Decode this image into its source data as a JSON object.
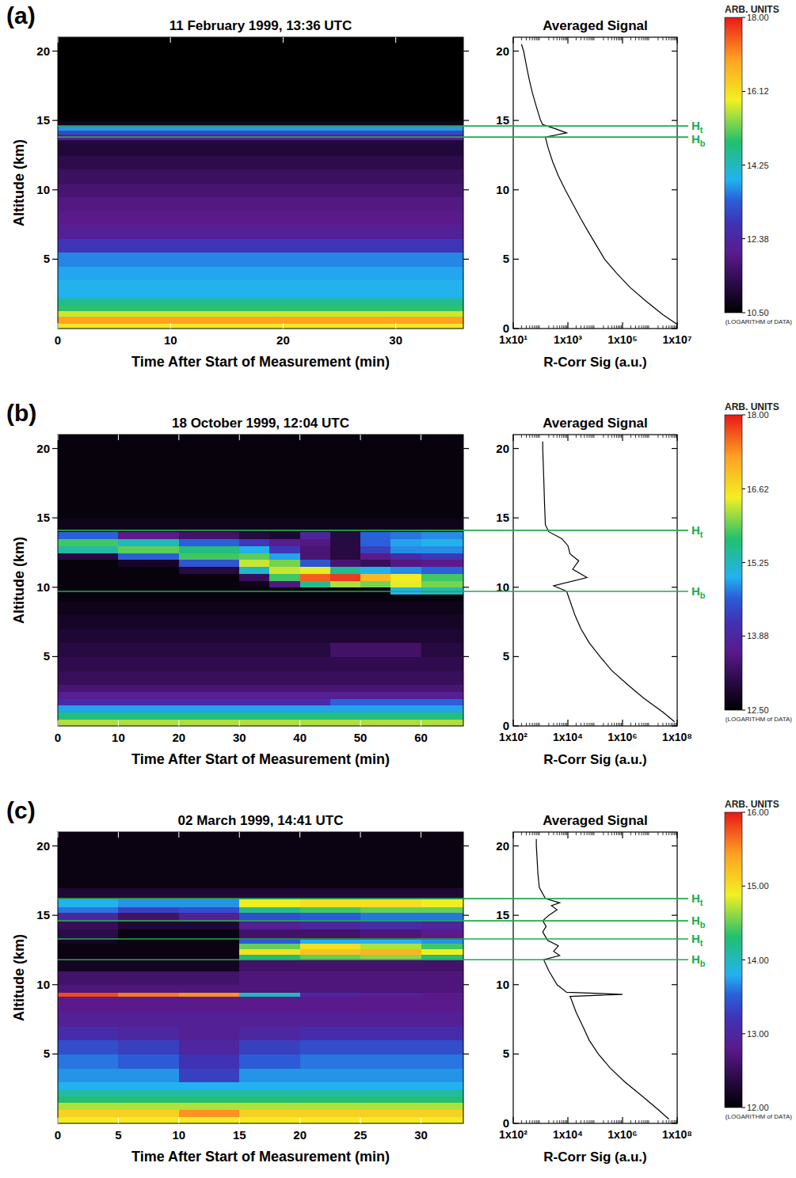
{
  "chart_data": [
    {
      "type": "heatmap",
      "panel": "(a)",
      "title": "11 February 1999, 13:36 UTC",
      "x_label": "Time After Start of Measurement (min)",
      "y_label": "Altitude (km)",
      "xlim": [
        0,
        36
      ],
      "xticks": [
        0,
        10,
        20,
        30
      ],
      "ylim": [
        0,
        21
      ],
      "yticks": [
        5,
        10,
        15,
        20
      ],
      "time_edges": [
        0,
        36
      ],
      "altitude_edges": [
        0,
        0.4,
        0.9,
        1.3,
        1.7,
        2.2,
        2.7,
        3.5,
        4.5,
        5.5,
        6.5,
        7.5,
        8.5,
        9.5,
        10.5,
        11.5,
        12.5,
        13.6,
        14.0,
        14.3,
        14.6,
        15,
        21
      ],
      "cells": [
        [
          16.0
        ],
        [
          16.9
        ],
        [
          15.7
        ],
        [
          14.9
        ],
        [
          14.6
        ],
        [
          13.9
        ],
        [
          13.9
        ],
        [
          13.8
        ],
        [
          13.6
        ],
        [
          12.8
        ],
        [
          12.2
        ],
        [
          12.0
        ],
        [
          11.9
        ],
        [
          11.7
        ],
        [
          11.5
        ],
        [
          11.3
        ],
        [
          11.1
        ],
        [
          12.2
        ],
        [
          13.1
        ],
        [
          13.7
        ],
        [
          10.8
        ],
        [
          10.5
        ]
      ],
      "colorbar": {
        "title": "ARB. UNITS",
        "note": "(LOGARITHM of DATA)",
        "range": [
          10.5,
          18
        ],
        "ticks": [
          {
            "value": 10.5,
            "label": "10.50"
          },
          12.38,
          14.25,
          16.12,
          {
            "value": 18,
            "label": "18.00"
          }
        ]
      },
      "profile": {
        "type": "line",
        "log": "x",
        "title": "Averaged Signal",
        "x_label": "R-Corr Sig (a.u.)",
        "color": "#000000",
        "xlim": [
          10,
          10000000
        ],
        "xticks": [
          {
            "value": 10,
            "label": "1x10¹"
          },
          {
            "value": 1000,
            "label": "1x10³"
          },
          {
            "value": 100000,
            "label": "1x10⁵"
          },
          {
            "value": 10000000,
            "label": "1x10⁷"
          }
        ],
        "ylim": [
          0,
          21
        ],
        "yticks": [
          0,
          5,
          10,
          15,
          20
        ],
        "altitude": [
          0.3,
          1,
          2,
          3,
          4,
          5,
          6,
          7,
          8,
          9,
          10,
          11,
          12,
          13,
          13.8,
          14.1,
          14.4,
          14.7,
          15,
          16,
          17,
          18,
          19,
          20,
          20.5
        ],
        "signal": [
          10000000,
          3000000,
          700000,
          180000,
          60000,
          22000,
          11000,
          5500,
          2800,
          1500,
          800,
          450,
          280,
          190,
          150,
          900,
          350,
          120,
          100,
          70,
          50,
          38,
          30,
          24,
          20
        ]
      },
      "levels": {
        "color": "#22aa4a",
        "lines": [
          {
            "value": 14.6,
            "label": "H",
            "sub": "t"
          },
          {
            "value": 13.8,
            "label": "H",
            "sub": "b"
          }
        ]
      }
    },
    {
      "type": "heatmap",
      "panel": "(b)",
      "title": "18 October 1999, 12:04 UTC",
      "x_label": "Time After Start of Measurement (min)",
      "y_label": "Altitude (km)",
      "xlim": [
        0,
        67
      ],
      "xticks": [
        0,
        10,
        20,
        30,
        40,
        50,
        60
      ],
      "ylim": [
        0,
        21
      ],
      "yticks": [
        5,
        10,
        15,
        20
      ],
      "time_edges": [
        0,
        10,
        20,
        30,
        35,
        40,
        45,
        50,
        55,
        60,
        67
      ],
      "altitude_edges": [
        0,
        0.5,
        1,
        1.5,
        2,
        2.5,
        3,
        4,
        5,
        6,
        7,
        8,
        9,
        9.5,
        10,
        10.5,
        11,
        11.5,
        12,
        12.5,
        13,
        13.5,
        14,
        15,
        21
      ],
      "cells": [
        [
          16.2,
          16.2,
          16.2,
          16.2,
          16.2,
          16.2,
          16.2,
          16.2,
          16.2,
          16.2
        ],
        [
          15.6,
          15.6,
          15.6,
          15.6,
          15.6,
          15.6,
          15.6,
          15.6,
          15.6,
          15.6
        ],
        [
          14.9,
          14.9,
          14.9,
          14.9,
          14.9,
          14.9,
          14.9,
          14.9,
          14.9,
          14.9
        ],
        [
          14.0,
          14.0,
          14.0,
          14.0,
          14.0,
          14.0,
          14.6,
          14.6,
          14.6,
          14.6
        ],
        [
          13.7,
          13.7,
          13.7,
          13.7,
          13.7,
          13.7,
          13.7,
          13.7,
          13.7,
          13.7
        ],
        [
          13.4,
          13.4,
          13.4,
          13.4,
          13.4,
          13.4,
          13.4,
          13.4,
          13.4,
          13.4
        ],
        [
          13.2,
          13.2,
          13.2,
          13.2,
          13.2,
          13.2,
          13.2,
          13.2,
          13.2,
          13.2
        ],
        [
          13.1,
          13.1,
          13.1,
          13.1,
          13.1,
          13.1,
          13.1,
          13.1,
          13.1,
          13.1
        ],
        [
          13.0,
          13.0,
          13.0,
          13.0,
          13.0,
          13.0,
          13.3,
          13.3,
          13.3,
          13.0
        ],
        [
          12.9,
          12.9,
          12.9,
          12.9,
          12.9,
          12.9,
          12.9,
          12.9,
          12.9,
          12.9
        ],
        [
          12.8,
          12.8,
          12.8,
          12.8,
          12.8,
          12.8,
          12.8,
          12.8,
          12.8,
          12.8
        ],
        [
          12.7,
          12.7,
          12.7,
          12.7,
          12.7,
          12.7,
          12.7,
          12.7,
          12.7,
          12.7
        ],
        [
          12.6,
          12.6,
          12.6,
          12.6,
          12.6,
          12.6,
          12.6,
          12.6,
          12.6,
          12.6
        ],
        [
          12.6,
          12.6,
          12.6,
          12.6,
          12.6,
          12.6,
          12.6,
          12.6,
          15.0,
          15.3
        ],
        [
          12.6,
          12.6,
          12.6,
          12.7,
          13.5,
          15.5,
          16.2,
          16.0,
          16.4,
          16.0
        ],
        [
          12.6,
          12.6,
          12.6,
          13.2,
          15.8,
          17.6,
          17.8,
          17.0,
          16.5,
          15.8
        ],
        [
          12.6,
          12.6,
          13.0,
          15.2,
          16.3,
          16.4,
          15.5,
          15.0,
          14.8,
          14.6
        ],
        [
          12.6,
          12.8,
          14.5,
          16.3,
          16.0,
          14.5,
          13.4,
          13.2,
          13.5,
          13.6
        ],
        [
          13.0,
          14.6,
          15.8,
          15.9,
          14.9,
          13.4,
          13.0,
          13.6,
          14.0,
          14.2
        ],
        [
          15.4,
          15.9,
          15.6,
          15.0,
          14.2,
          13.4,
          13.0,
          14.3,
          14.8,
          14.8
        ],
        [
          15.8,
          15.3,
          14.6,
          14.2,
          13.7,
          13.5,
          13.0,
          14.6,
          14.9,
          15.0
        ],
        [
          14.6,
          13.6,
          13.3,
          13.0,
          12.9,
          13.8,
          13.0,
          14.6,
          14.7,
          14.8
        ],
        [
          12.7,
          12.7,
          12.7,
          12.7,
          12.7,
          12.7,
          12.7,
          12.7,
          12.7,
          12.7
        ],
        [
          12.6,
          12.6,
          12.6,
          12.6,
          12.6,
          12.6,
          12.6,
          12.6,
          12.6,
          12.6
        ]
      ],
      "colorbar": {
        "title": "ARB. UNITS",
        "note": "(LOGARITHM of DATA)",
        "range": [
          12.5,
          18
        ],
        "ticks": [
          {
            "value": 12.5,
            "label": "12.50"
          },
          13.88,
          15.25,
          16.62,
          {
            "value": 18,
            "label": "18.00"
          }
        ]
      },
      "profile": {
        "type": "line",
        "log": "x",
        "title": "Averaged Signal",
        "x_label": "R-Corr Sig (a.u.)",
        "color": "#000000",
        "xlim": [
          100,
          100000000
        ],
        "xticks": [
          {
            "value": 100,
            "label": "1x10²"
          },
          {
            "value": 10000,
            "label": "1x10⁴"
          },
          {
            "value": 1000000,
            "label": "1x10⁶"
          },
          {
            "value": 100000000,
            "label": "1x10⁸"
          }
        ],
        "ylim": [
          0,
          21
        ],
        "yticks": [
          0,
          5,
          10,
          15,
          20
        ],
        "altitude": [
          0.3,
          1,
          2,
          3,
          4,
          5,
          6,
          7,
          8,
          9,
          9.7,
          10.1,
          10.7,
          11.3,
          11.9,
          12.4,
          13,
          13.5,
          14,
          14.5,
          16,
          18,
          20,
          20.5
        ],
        "signal": [
          80000000,
          30000000,
          6000000,
          1500000,
          400000,
          150000,
          60000,
          30000,
          18000,
          12000,
          9000,
          3000,
          50000,
          15000,
          25000,
          12000,
          10000,
          6000,
          2000,
          1500,
          1400,
          1300,
          1200,
          1200
        ]
      },
      "levels": {
        "color": "#22aa4a",
        "lines": [
          {
            "value": 14.1,
            "label": "H",
            "sub": "t"
          },
          {
            "value": 9.7,
            "label": "H",
            "sub": "b"
          }
        ]
      }
    },
    {
      "type": "heatmap",
      "panel": "(c)",
      "title": "02 March 1999, 14:41 UTC",
      "x_label": "Time After Start of Measurement (min)",
      "y_label": "Altitude (km)",
      "xlim": [
        0,
        33.5
      ],
      "xticks": [
        0,
        5,
        10,
        15,
        20,
        25,
        30
      ],
      "ylim": [
        0,
        21
      ],
      "yticks": [
        5,
        10,
        15,
        20
      ],
      "time_edges": [
        0,
        5,
        10,
        15,
        20,
        25,
        30,
        33.5
      ],
      "altitude_edges": [
        0,
        0.5,
        1,
        1.5,
        2,
        2.5,
        3,
        4,
        5,
        6,
        7,
        8,
        9,
        9.15,
        9.45,
        10,
        11,
        11.8,
        12.2,
        12.6,
        13,
        13.3,
        14,
        14.6,
        15.2,
        15.6,
        16.2,
        17,
        21
      ],
      "cells": [
        [
          14.9,
          14.9,
          14.9,
          14.9,
          14.9,
          14.9,
          14.9
        ],
        [
          15.1,
          15.1,
          15.5,
          15.1,
          15.1,
          15.1,
          15.1
        ],
        [
          14.7,
          14.7,
          14.7,
          14.7,
          14.7,
          14.7,
          14.7
        ],
        [
          14.3,
          14.3,
          14.3,
          14.3,
          14.3,
          14.3,
          14.3
        ],
        [
          14.1,
          14.1,
          14.1,
          14.1,
          14.1,
          14.1,
          14.1
        ],
        [
          13.8,
          13.8,
          13.8,
          13.8,
          13.8,
          13.8,
          13.8
        ],
        [
          13.7,
          13.7,
          13.3,
          13.7,
          13.7,
          13.7,
          13.7
        ],
        [
          13.6,
          13.5,
          13.2,
          13.5,
          13.6,
          13.6,
          13.6
        ],
        [
          13.4,
          13.3,
          13.0,
          13.3,
          13.4,
          13.4,
          13.4
        ],
        [
          13.1,
          13.0,
          12.9,
          13.0,
          13.1,
          13.1,
          13.1
        ],
        [
          12.9,
          12.9,
          12.9,
          12.9,
          12.9,
          12.9,
          12.9
        ],
        [
          12.8,
          12.8,
          12.8,
          12.8,
          12.8,
          12.8,
          12.8
        ],
        [
          12.8,
          12.8,
          12.8,
          12.8,
          12.8,
          12.8,
          12.8
        ],
        [
          15.8,
          15.6,
          15.5,
          14.0,
          13.0,
          12.9,
          12.8
        ],
        [
          12.7,
          12.7,
          12.7,
          12.7,
          12.7,
          12.7,
          12.7
        ],
        [
          12.6,
          12.6,
          12.6,
          12.7,
          12.7,
          12.7,
          12.7
        ],
        [
          12.2,
          12.2,
          12.2,
          12.6,
          12.6,
          12.6,
          12.6
        ],
        [
          12.1,
          12.1,
          12.1,
          14.3,
          14.5,
          14.6,
          14.3
        ],
        [
          12.1,
          12.1,
          12.1,
          15.0,
          15.2,
          15.3,
          14.9
        ],
        [
          12.1,
          12.1,
          12.1,
          14.5,
          15.0,
          14.7,
          14.4
        ],
        [
          12.2,
          12.1,
          12.1,
          13.5,
          13.8,
          13.8,
          13.7
        ],
        [
          12.4,
          12.1,
          12.1,
          12.6,
          12.6,
          12.7,
          12.8
        ],
        [
          12.5,
          12.3,
          12.3,
          12.9,
          13.0,
          13.1,
          13.0
        ],
        [
          13.0,
          12.6,
          12.9,
          13.4,
          13.5,
          13.6,
          13.6
        ],
        [
          13.6,
          13.3,
          13.4,
          14.2,
          14.4,
          14.5,
          14.5
        ],
        [
          13.8,
          13.7,
          13.7,
          14.9,
          15.0,
          15.0,
          14.9
        ],
        [
          12.3,
          12.3,
          12.3,
          12.3,
          12.3,
          12.3,
          12.3
        ],
        [
          12.1,
          12.1,
          12.1,
          12.1,
          12.1,
          12.1,
          12.1
        ]
      ],
      "colorbar": {
        "title": "ARB. UNITS",
        "note": "(LOGARITHM of DATA)",
        "range": [
          12,
          16
        ],
        "ticks": [
          {
            "value": 12,
            "label": "12.00"
          },
          {
            "value": 13,
            "label": "13.00"
          },
          {
            "value": 14,
            "label": "14.00"
          },
          {
            "value": 15,
            "label": "15.00"
          },
          {
            "value": 16,
            "label": "16.00"
          }
        ]
      },
      "profile": {
        "type": "line",
        "log": "x",
        "title": "Averaged Signal",
        "x_label": "R-Corr Sig (a.u.)",
        "color": "#000000",
        "xlim": [
          100,
          100000000
        ],
        "xticks": [
          {
            "value": 100,
            "label": "1x10²"
          },
          {
            "value": 10000,
            "label": "1x10⁴"
          },
          {
            "value": 1000000,
            "label": "1x10⁶"
          },
          {
            "value": 100000000,
            "label": "1x10⁸"
          }
        ],
        "ylim": [
          0,
          21
        ],
        "yticks": [
          0,
          5,
          10,
          15,
          20
        ],
        "altitude": [
          0.3,
          1,
          2,
          3,
          4,
          5,
          6,
          7,
          8,
          9,
          9.15,
          9.3,
          9.45,
          10,
          11,
          11.8,
          12.1,
          12.4,
          12.8,
          13.2,
          13.8,
          14.2,
          14.6,
          15.0,
          15.4,
          15.7,
          15.9,
          16.2,
          17,
          18,
          20,
          20.5
        ],
        "signal": [
          50000000,
          20000000,
          5000000,
          1200000,
          350000,
          130000,
          60000,
          35000,
          20000,
          13000,
          12000,
          1000000,
          9000,
          4000,
          2000,
          1300,
          5000,
          3000,
          4500,
          1800,
          1200,
          1600,
          1200,
          2000,
          4000,
          2500,
          5000,
          1500,
          900,
          800,
          700,
          700
        ]
      },
      "levels": {
        "color": "#22aa4a",
        "lines": [
          {
            "value": 16.2,
            "label": "H",
            "sub": "t"
          },
          {
            "value": 14.6,
            "label": "H",
            "sub": "b"
          },
          {
            "value": 13.3,
            "label": "H",
            "sub": "t"
          },
          {
            "value": 11.8,
            "label": "H",
            "sub": "b"
          }
        ]
      }
    }
  ]
}
